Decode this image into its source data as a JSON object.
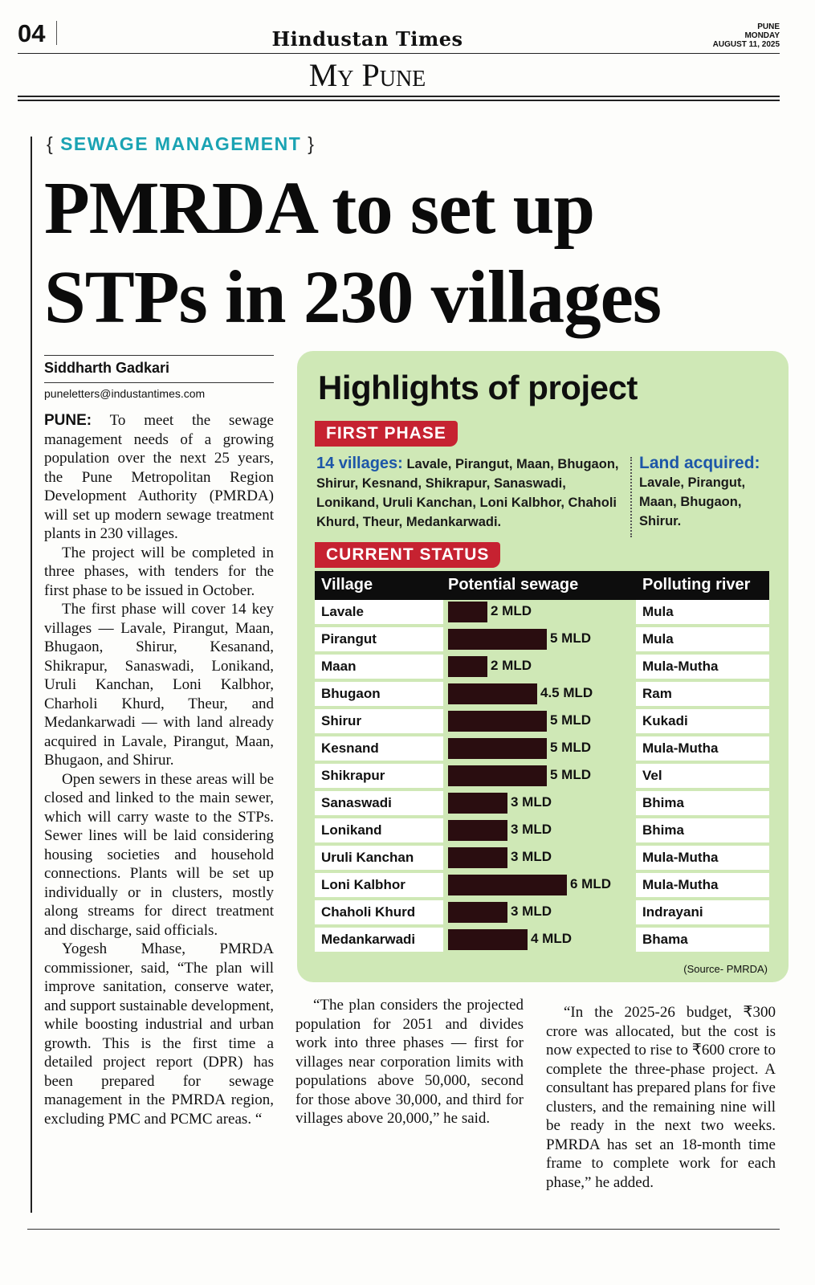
{
  "masthead": {
    "page_number": "04",
    "paper_name": "Hindustan Times",
    "section": "My Pune",
    "dateline": [
      "PUNE",
      "MONDAY",
      "AUGUST 11, 2025"
    ]
  },
  "article": {
    "kicker": "SEWAGE MANAGEMENT",
    "headline_line1": "PMRDA to set up",
    "headline_line2": "STPs in 230 villages",
    "byline": "Siddharth Gadkari",
    "email": "puneletters@industantimes.com",
    "dateline_word": "PUNE:",
    "paragraphs": [
      "To meet the sewage management needs of a growing population over the next 25 years, the Pune Metropolitan Region Development Authority (PMRDA) will set up modern sewage treatment plants in 230 villages.",
      "The project will be completed in three phases, with tenders for the first phase to be issued in October.",
      "The first phase will cover 14 key villages — Lavale, Pirangut, Maan, Bhugaon, Shirur, Kesanand, Shikrapur, Sanaswadi, Lonikand, Uruli Kanchan, Loni Kalbhor, Charholi Khurd, Theur, and Medankarwadi — with land already acquired in Lavale, Pirangut, Maan, Bhugaon, and Shirur.",
      "Open sewers in these areas will be closed and linked to the main sewer, which will carry waste to the STPs. Sewer lines will be laid considering housing societies and household connections. Plants will be set up individually or in clusters, mostly along streams for direct treatment and discharge, said officials.",
      "Yogesh Mhase, PMRDA commissioner, said, “The plan will improve sanitation, conserve water, and support sustainable development, while boosting industrial and urban growth. This is the first time a detailed project report (DPR) has been prepared for sewage management in the PMRDA region, excluding PMC and PCMC areas. “",
      "“The plan considers the projected population for 2051 and divides work into three phases — first for villages near corporation limits with populations above 50,000, second for those above 30,000, and third for villages above 20,000,” he said.",
      "“In the 2025-26 budget, ₹300 crore was allocated, but the cost is now expected to rise to ₹600 crore to complete the three-phase project. A consultant has prepared plans for five clusters, and the remaining nine will be ready in the next two weeks. PMRDA has set an 18-month time frame to complete work for each phase,” he added."
    ]
  },
  "infographic": {
    "title": "Highlights of project",
    "first_phase_label": "FIRST PHASE",
    "villages_lead": "14 villages:",
    "villages_list": "Lavale, Pirangut, Maan, Bhugaon, Shirur, Kesnand, Shikrapur, Sanaswadi, Lonikand, Uruli Kanchan, Loni Kalbhor, Chaholi Khurd, Theur, Medankarwadi.",
    "land_lead": "Land acquired:",
    "land_list": "Lavale, Pirangut, Maan, Bhugaon, Shirur.",
    "current_status_label": "CURRENT STATUS",
    "columns": [
      "Village",
      "Potential sewage",
      "Polluting river"
    ],
    "source": "(Source- PMRDA)",
    "colors": {
      "panel": "#cfe8b6",
      "tag": "#c62231",
      "bar": "#2a0d10",
      "lead": "#1d56a8",
      "kicker": "#1aa3b3"
    }
  },
  "chart_data": {
    "type": "bar",
    "orientation": "horizontal",
    "unit": "MLD",
    "categories": [
      "Lavale",
      "Pirangut",
      "Maan",
      "Bhugaon",
      "Shirur",
      "Kesnand",
      "Shikrapur",
      "Sanaswadi",
      "Lonikand",
      "Uruli Kanchan",
      "Loni Kalbhor",
      "Chaholi Khurd",
      "Medankarwadi"
    ],
    "values": [
      2,
      5,
      2,
      4.5,
      5,
      5,
      5,
      3,
      3,
      3,
      6,
      3,
      4
    ],
    "value_labels": [
      "2 MLD",
      "5 MLD",
      "2 MLD",
      "4.5 MLD",
      "5 MLD",
      "5 MLD",
      "5 MLD",
      "3 MLD",
      "3 MLD",
      "3 MLD",
      "6 MLD",
      "3 MLD",
      "4 MLD"
    ],
    "rivers": [
      "Mula",
      "Mula",
      "Mula-Mutha",
      "Ram",
      "Kukadi",
      "Mula-Mutha",
      "Vel",
      "Bhima",
      "Bhima",
      "Mula-Mutha",
      "Mula-Mutha",
      "Indrayani",
      "Bhama"
    ],
    "xlim": [
      0,
      6
    ]
  }
}
